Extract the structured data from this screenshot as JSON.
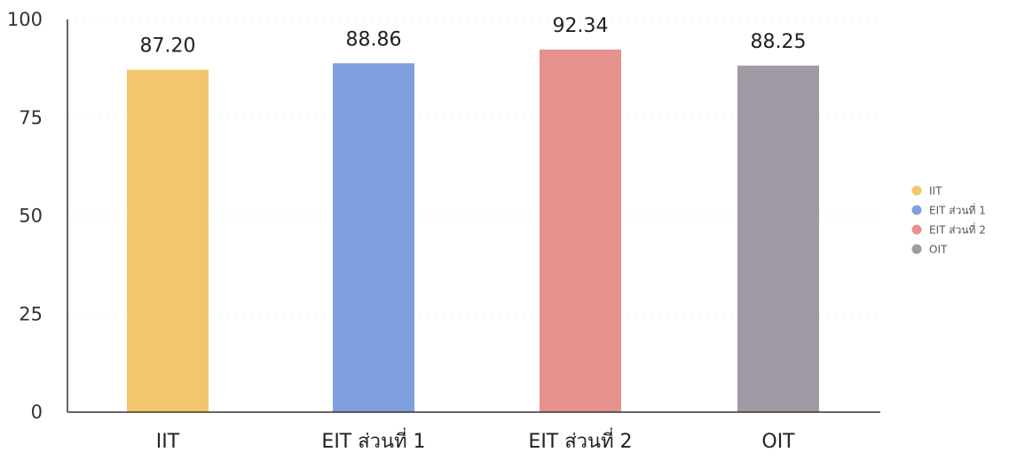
{
  "chart_data": {
    "type": "bar",
    "title": "",
    "xlabel": "",
    "ylabel": "",
    "ylim": [
      0,
      100
    ],
    "yticks": [
      0,
      25,
      50,
      75,
      100
    ],
    "grid": true,
    "legend_position": "right",
    "categories": [
      "IIT",
      "EIT ส่วนที่ 1",
      "EIT ส่วนที่ 2",
      "OIT"
    ],
    "values": [
      87.2,
      88.86,
      92.34,
      88.25
    ],
    "value_labels": [
      "87.20",
      "88.86",
      "92.34",
      "88.25"
    ],
    "colors": [
      "#f2c66c",
      "#7f9fdf",
      "#e5928c",
      "#9f9aa3"
    ],
    "legend": [
      "IIT",
      "EIT ส่วนที่ 1",
      "EIT ส่วนที่ 2",
      "OIT"
    ]
  }
}
